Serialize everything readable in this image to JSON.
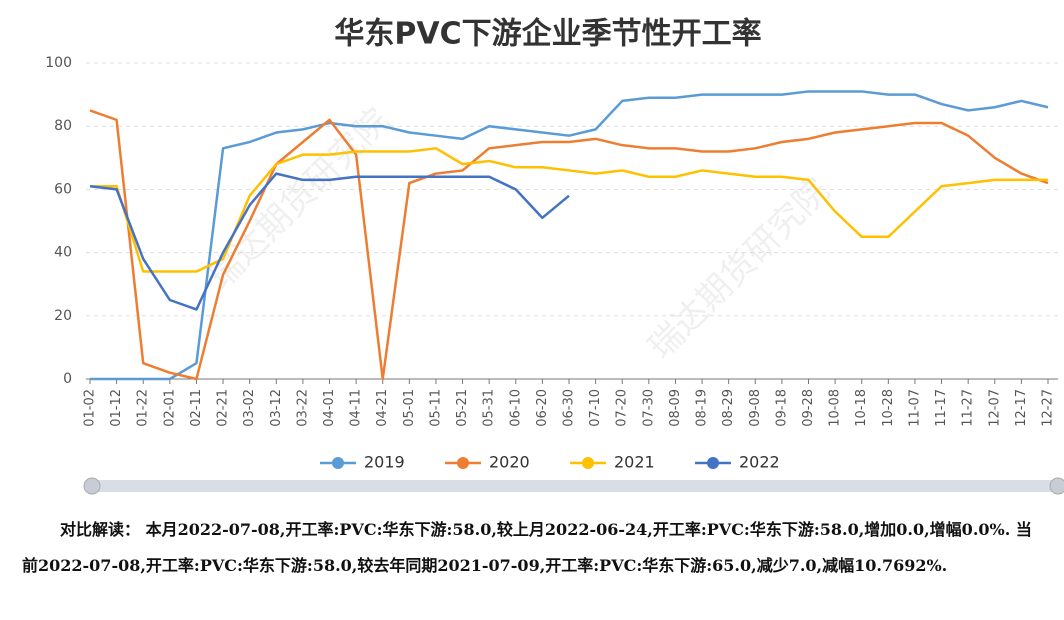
{
  "chart_data": {
    "type": "line",
    "title": "华东PVC下游企业季节性开工率",
    "watermark": "瑞达期货研究院",
    "categories": [
      "01-02",
      "01-12",
      "01-22",
      "02-01",
      "02-11",
      "02-21",
      "03-02",
      "03-12",
      "03-22",
      "04-01",
      "04-11",
      "04-21",
      "05-01",
      "05-11",
      "05-21",
      "05-31",
      "06-10",
      "06-20",
      "06-30",
      "07-10",
      "07-20",
      "07-30",
      "08-09",
      "08-19",
      "08-29",
      "09-08",
      "09-18",
      "09-28",
      "10-08",
      "10-18",
      "10-28",
      "11-07",
      "11-17",
      "11-27",
      "12-07",
      "12-17",
      "12-27"
    ],
    "series": [
      {
        "name": "2019",
        "color": "#5b9bd5",
        "values": [
          0,
          0,
          0,
          0,
          5,
          73,
          75,
          78,
          79,
          81,
          80,
          80,
          78,
          77,
          76,
          80,
          79,
          78,
          77,
          79,
          88,
          89,
          89,
          90,
          90,
          90,
          90,
          91,
          91,
          91,
          90,
          90,
          87,
          85,
          86,
          88,
          86
        ]
      },
      {
        "name": "2020",
        "color": "#ed7d31",
        "values": [
          85,
          82,
          5,
          2,
          0,
          33,
          50,
          68,
          75,
          82,
          71,
          0,
          62,
          65,
          66,
          73,
          74,
          75,
          75,
          76,
          74,
          73,
          73,
          72,
          72,
          73,
          75,
          76,
          78,
          79,
          80,
          81,
          81,
          77,
          70,
          65,
          62
        ]
      },
      {
        "name": "2021",
        "color": "#ffc000",
        "values": [
          61,
          61,
          34,
          34,
          34,
          38,
          58,
          68,
          71,
          71,
          72,
          72,
          72,
          73,
          68,
          69,
          67,
          67,
          66,
          65,
          66,
          64,
          64,
          66,
          65,
          64,
          64,
          63,
          53,
          45,
          45,
          53,
          61,
          62,
          63,
          63,
          63
        ]
      },
      {
        "name": "2022",
        "color": "#4472c4",
        "values": [
          61,
          60,
          38,
          25,
          22,
          40,
          55,
          65,
          63,
          63,
          64,
          64,
          64,
          64,
          64,
          64,
          60,
          51,
          58,
          null,
          null,
          null,
          null,
          null,
          null,
          null,
          null,
          null,
          null,
          null,
          null,
          null,
          null,
          null,
          null,
          null,
          null
        ]
      }
    ],
    "ylim": [
      0,
      100
    ],
    "yticks": [
      0,
      20,
      40,
      60,
      80,
      100
    ],
    "grid": true,
    "legend": "bottom",
    "note": "对比解读： 本月2022-07-08,开工率:PVC:华东下游:58.0,较上月2022-06-24,开工率:PVC:华东下游:58.0,增加0.0,增幅0.0%. 当前2022-07-08,开工率:PVC:华东下游:58.0,较去年同期2021-07-09,开工率:PVC:华东下游:65.0,减少7.0,减幅10.7692%."
  }
}
